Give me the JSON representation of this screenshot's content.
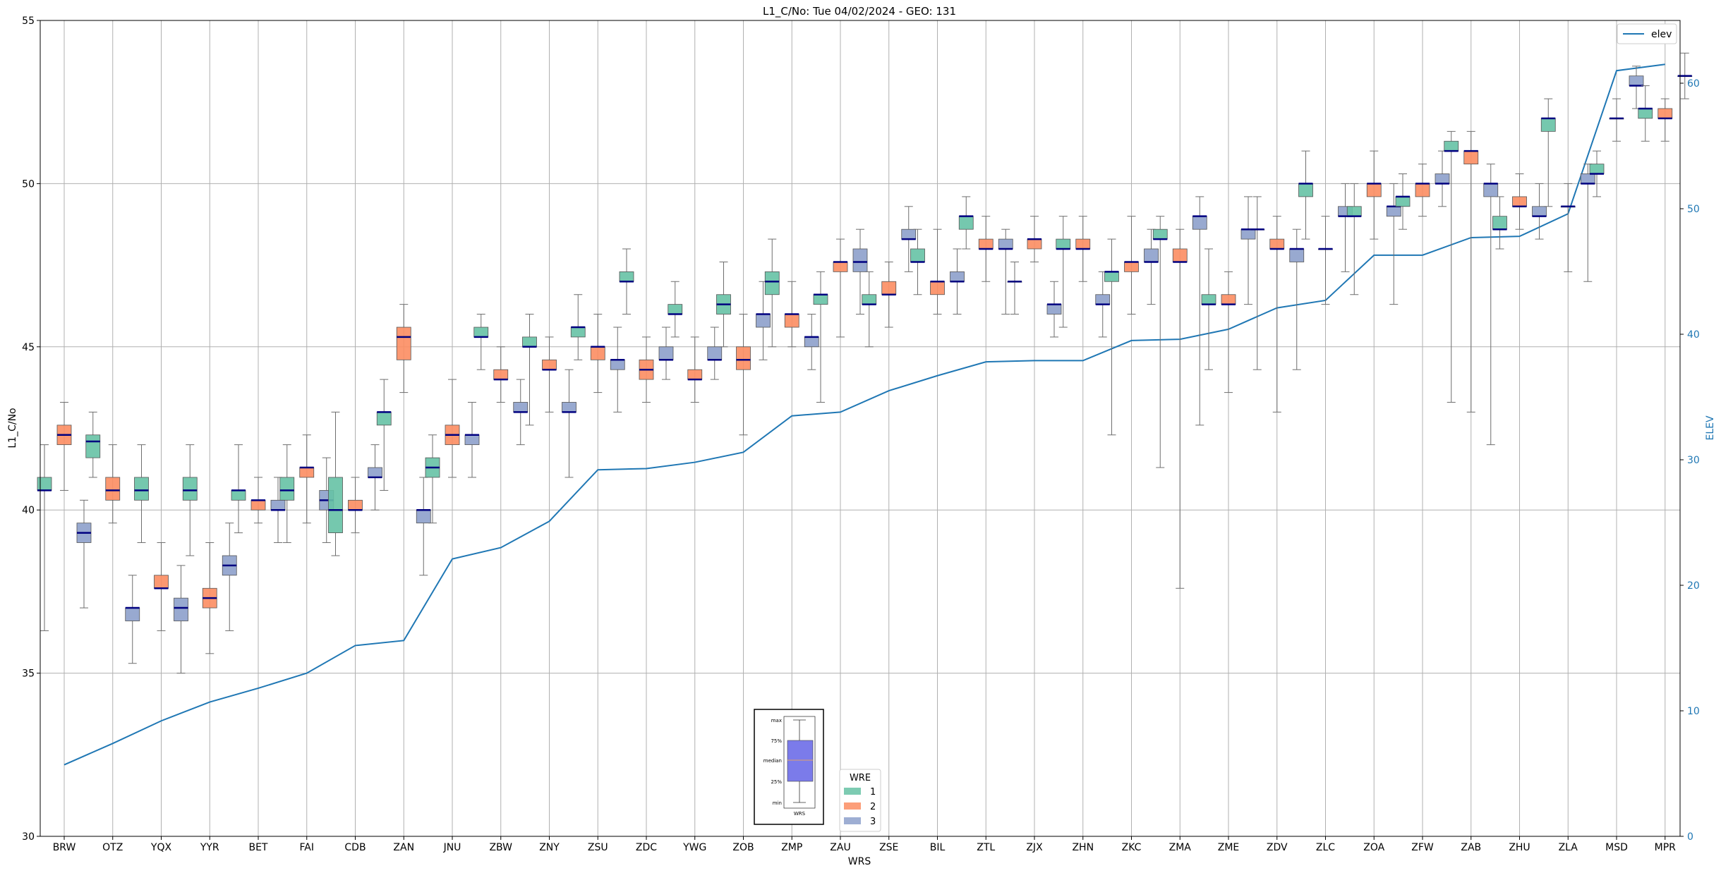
{
  "chart_data": {
    "type": "box",
    "title": "L1_C/No: Tue 04/02/2024 - GEO: 131",
    "xlabel": "WRS",
    "ylabel": "L1_C/No",
    "y2label": "ELEV",
    "ylim": [
      30,
      55
    ],
    "y2lim": [
      0,
      65
    ],
    "yticks": [
      "30",
      "35",
      "40",
      "45",
      "50",
      "55"
    ],
    "y2ticks": [
      "0",
      "10",
      "20",
      "30",
      "40",
      "50",
      "60"
    ],
    "grid": true,
    "categories": [
      "BRW",
      "OTZ",
      "YQX",
      "YYR",
      "BET",
      "FAI",
      "CDB",
      "ZAN",
      "JNU",
      "ZBW",
      "ZNY",
      "ZSU",
      "ZDC",
      "YWG",
      "ZOB",
      "ZMP",
      "ZAU",
      "ZSE",
      "BIL",
      "ZTL",
      "ZJX",
      "ZHN",
      "ZKC",
      "ZMA",
      "ZME",
      "ZDV",
      "ZLC",
      "ZOA",
      "ZFW",
      "ZAB",
      "ZHU",
      "ZLA",
      "MSD",
      "MPR"
    ],
    "wre_colors": {
      "1": "#66c2a5",
      "2": "#fc8d62",
      "3": "#8da0cb"
    },
    "legend": {
      "title": "WRE",
      "entries": [
        "1",
        "2",
        "3"
      ],
      "placement": "bottom-center"
    },
    "elev_legend": {
      "label": "elev",
      "placement": "top-right",
      "color": "#1f77b4"
    },
    "key_box": {
      "labels": [
        "max",
        "75%",
        "median",
        "25%",
        "min"
      ],
      "xlabel": "WRS"
    },
    "boxes": [
      {
        "cat": "BRW",
        "wre": "1",
        "min": 36.3,
        "q1": 40.6,
        "med": 40.6,
        "q3": 41.0,
        "max": 42.0
      },
      {
        "cat": "BRW",
        "wre": "2",
        "min": 40.6,
        "q1": 42.0,
        "med": 42.3,
        "q3": 42.6,
        "max": 43.3
      },
      {
        "cat": "BRW",
        "wre": "3",
        "min": 37.0,
        "q1": 39.0,
        "med": 39.3,
        "q3": 39.6,
        "max": 40.3
      },
      {
        "cat": "OTZ",
        "wre": "1",
        "min": 41.0,
        "q1": 41.6,
        "med": 42.1,
        "q3": 42.3,
        "max": 43.0
      },
      {
        "cat": "OTZ",
        "wre": "2",
        "min": 39.6,
        "q1": 40.3,
        "med": 40.6,
        "q3": 41.0,
        "max": 42.0
      },
      {
        "cat": "OTZ",
        "wre": "3",
        "min": 35.3,
        "q1": 36.6,
        "med": 37.0,
        "q3": 37.0,
        "max": 38.0
      },
      {
        "cat": "YQX",
        "wre": "1",
        "min": 39.0,
        "q1": 40.3,
        "med": 40.6,
        "q3": 41.0,
        "max": 42.0
      },
      {
        "cat": "YQX",
        "wre": "2",
        "min": 36.3,
        "q1": 37.6,
        "med": 37.6,
        "q3": 38.0,
        "max": 39.0
      },
      {
        "cat": "YQX",
        "wre": "3",
        "min": 35.0,
        "q1": 36.6,
        "med": 37.0,
        "q3": 37.3,
        "max": 38.3
      },
      {
        "cat": "YYR",
        "wre": "1",
        "min": 38.6,
        "q1": 40.3,
        "med": 40.6,
        "q3": 41.0,
        "max": 42.0
      },
      {
        "cat": "YYR",
        "wre": "2",
        "min": 35.6,
        "q1": 37.0,
        "med": 37.3,
        "q3": 37.6,
        "max": 39.0
      },
      {
        "cat": "YYR",
        "wre": "3",
        "min": 36.3,
        "q1": 38.0,
        "med": 38.3,
        "q3": 38.6,
        "max": 39.6
      },
      {
        "cat": "BET",
        "wre": "1",
        "min": 39.3,
        "q1": 40.3,
        "med": 40.6,
        "q3": 40.6,
        "max": 42.0
      },
      {
        "cat": "BET",
        "wre": "2",
        "min": 39.6,
        "q1": 40.0,
        "med": 40.3,
        "q3": 40.3,
        "max": 41.0
      },
      {
        "cat": "BET",
        "wre": "3",
        "min": 39.0,
        "q1": 40.0,
        "med": 40.0,
        "q3": 40.3,
        "max": 41.0
      },
      {
        "cat": "FAI",
        "wre": "1",
        "min": 39.0,
        "q1": 40.3,
        "med": 40.6,
        "q3": 41.0,
        "max": 42.0
      },
      {
        "cat": "FAI",
        "wre": "2",
        "min": 39.6,
        "q1": 41.0,
        "med": 41.3,
        "q3": 41.3,
        "max": 42.3
      },
      {
        "cat": "FAI",
        "wre": "3",
        "min": 39.0,
        "q1": 40.0,
        "med": 40.3,
        "q3": 40.6,
        "max": 41.6
      },
      {
        "cat": "CDB",
        "wre": "1",
        "min": 38.6,
        "q1": 39.3,
        "med": 40.0,
        "q3": 41.0,
        "max": 43.0
      },
      {
        "cat": "CDB",
        "wre": "2",
        "min": 39.3,
        "q1": 40.0,
        "med": 40.0,
        "q3": 40.3,
        "max": 41.0
      },
      {
        "cat": "CDB",
        "wre": "3",
        "min": 40.0,
        "q1": 41.0,
        "med": 41.0,
        "q3": 41.3,
        "max": 42.0
      },
      {
        "cat": "ZAN",
        "wre": "1",
        "min": 40.6,
        "q1": 42.6,
        "med": 43.0,
        "q3": 43.0,
        "max": 44.0
      },
      {
        "cat": "ZAN",
        "wre": "2",
        "min": 43.6,
        "q1": 44.6,
        "med": 45.3,
        "q3": 45.6,
        "max": 46.3
      },
      {
        "cat": "ZAN",
        "wre": "3",
        "min": 38.0,
        "q1": 39.6,
        "med": 40.0,
        "q3": 40.0,
        "max": 41.0
      },
      {
        "cat": "JNU",
        "wre": "1",
        "min": 39.6,
        "q1": 41.0,
        "med": 41.3,
        "q3": 41.6,
        "max": 42.3
      },
      {
        "cat": "JNU",
        "wre": "2",
        "min": 41.0,
        "q1": 42.0,
        "med": 42.3,
        "q3": 42.6,
        "max": 44.0
      },
      {
        "cat": "JNU",
        "wre": "3",
        "min": 41.0,
        "q1": 42.0,
        "med": 42.3,
        "q3": 42.3,
        "max": 43.3
      },
      {
        "cat": "ZBW",
        "wre": "1",
        "min": 44.3,
        "q1": 45.3,
        "med": 45.3,
        "q3": 45.6,
        "max": 46.0
      },
      {
        "cat": "ZBW",
        "wre": "2",
        "min": 43.3,
        "q1": 44.0,
        "med": 44.0,
        "q3": 44.3,
        "max": 45.0
      },
      {
        "cat": "ZBW",
        "wre": "3",
        "min": 42.0,
        "q1": 43.0,
        "med": 43.0,
        "q3": 43.3,
        "max": 44.0
      },
      {
        "cat": "ZNY",
        "wre": "1",
        "min": 42.6,
        "q1": 45.0,
        "med": 45.0,
        "q3": 45.3,
        "max": 46.0
      },
      {
        "cat": "ZNY",
        "wre": "2",
        "min": 43.0,
        "q1": 44.3,
        "med": 44.3,
        "q3": 44.6,
        "max": 45.3
      },
      {
        "cat": "ZNY",
        "wre": "3",
        "min": 41.0,
        "q1": 43.0,
        "med": 43.0,
        "q3": 43.3,
        "max": 44.3
      },
      {
        "cat": "ZSU",
        "wre": "1",
        "min": 44.6,
        "q1": 45.3,
        "med": 45.6,
        "q3": 45.6,
        "max": 46.6
      },
      {
        "cat": "ZSU",
        "wre": "2",
        "min": 43.6,
        "q1": 44.6,
        "med": 45.0,
        "q3": 45.0,
        "max": 46.0
      },
      {
        "cat": "ZSU",
        "wre": "3",
        "min": 43.0,
        "q1": 44.3,
        "med": 44.6,
        "q3": 44.6,
        "max": 45.6
      },
      {
        "cat": "ZDC",
        "wre": "1",
        "min": 46.0,
        "q1": 47.0,
        "med": 47.0,
        "q3": 47.3,
        "max": 48.0
      },
      {
        "cat": "ZDC",
        "wre": "2",
        "min": 43.3,
        "q1": 44.0,
        "med": 44.3,
        "q3": 44.6,
        "max": 45.3
      },
      {
        "cat": "ZDC",
        "wre": "3",
        "min": 44.0,
        "q1": 44.6,
        "med": 44.6,
        "q3": 45.0,
        "max": 45.6
      },
      {
        "cat": "YWG",
        "wre": "1",
        "min": 45.3,
        "q1": 46.0,
        "med": 46.0,
        "q3": 46.3,
        "max": 47.0
      },
      {
        "cat": "YWG",
        "wre": "2",
        "min": 43.3,
        "q1": 44.0,
        "med": 44.0,
        "q3": 44.3,
        "max": 45.3
      },
      {
        "cat": "YWG",
        "wre": "3",
        "min": 44.0,
        "q1": 44.6,
        "med": 44.6,
        "q3": 45.0,
        "max": 45.6
      },
      {
        "cat": "ZOB",
        "wre": "1",
        "min": 45.0,
        "q1": 46.0,
        "med": 46.3,
        "q3": 46.6,
        "max": 47.6
      },
      {
        "cat": "ZOB",
        "wre": "2",
        "min": 42.3,
        "q1": 44.3,
        "med": 44.6,
        "q3": 45.0,
        "max": 46.0
      },
      {
        "cat": "ZOB",
        "wre": "3",
        "min": 44.6,
        "q1": 45.6,
        "med": 46.0,
        "q3": 46.0,
        "max": 47.0
      },
      {
        "cat": "ZMP",
        "wre": "1",
        "min": 45.0,
        "q1": 46.6,
        "med": 47.0,
        "q3": 47.3,
        "max": 48.3
      },
      {
        "cat": "ZMP",
        "wre": "2",
        "min": 45.0,
        "q1": 45.6,
        "med": 46.0,
        "q3": 46.0,
        "max": 47.0
      },
      {
        "cat": "ZMP",
        "wre": "3",
        "min": 44.3,
        "q1": 45.0,
        "med": 45.3,
        "q3": 45.3,
        "max": 46.0
      },
      {
        "cat": "ZAU",
        "wre": "1",
        "min": 43.3,
        "q1": 46.3,
        "med": 46.6,
        "q3": 46.6,
        "max": 47.3
      },
      {
        "cat": "ZAU",
        "wre": "2",
        "min": 45.3,
        "q1": 47.3,
        "med": 47.6,
        "q3": 47.6,
        "max": 48.3
      },
      {
        "cat": "ZAU",
        "wre": "3",
        "min": 46.0,
        "q1": 47.3,
        "med": 47.6,
        "q3": 48.0,
        "max": 48.6
      },
      {
        "cat": "ZSE",
        "wre": "1",
        "min": 45.0,
        "q1": 46.3,
        "med": 46.3,
        "q3": 46.6,
        "max": 47.3
      },
      {
        "cat": "ZSE",
        "wre": "2",
        "min": 45.6,
        "q1": 46.6,
        "med": 46.6,
        "q3": 47.0,
        "max": 47.6
      },
      {
        "cat": "ZSE",
        "wre": "3",
        "min": 47.3,
        "q1": 48.3,
        "med": 48.3,
        "q3": 48.6,
        "max": 49.3
      },
      {
        "cat": "BIL",
        "wre": "1",
        "min": 46.6,
        "q1": 47.6,
        "med": 47.6,
        "q3": 48.0,
        "max": 48.6
      },
      {
        "cat": "BIL",
        "wre": "2",
        "min": 46.0,
        "q1": 46.6,
        "med": 47.0,
        "q3": 47.0,
        "max": 48.6
      },
      {
        "cat": "BIL",
        "wre": "3",
        "min": 46.0,
        "q1": 47.0,
        "med": 47.0,
        "q3": 47.3,
        "max": 48.0
      },
      {
        "cat": "ZTL",
        "wre": "1",
        "min": 48.0,
        "q1": 48.6,
        "med": 49.0,
        "q3": 49.0,
        "max": 49.6
      },
      {
        "cat": "ZTL",
        "wre": "2",
        "min": 47.0,
        "q1": 48.0,
        "med": 48.0,
        "q3": 48.3,
        "max": 49.0
      },
      {
        "cat": "ZTL",
        "wre": "3",
        "min": 46.0,
        "q1": 48.0,
        "med": 48.0,
        "q3": 48.3,
        "max": 48.6
      },
      {
        "cat": "ZJX",
        "wre": "1",
        "min": 46.0,
        "q1": 47.0,
        "med": 47.0,
        "q3": 47.0,
        "max": 47.6
      },
      {
        "cat": "ZJX",
        "wre": "2",
        "min": 47.6,
        "q1": 48.0,
        "med": 48.3,
        "q3": 48.3,
        "max": 49.0
      },
      {
        "cat": "ZJX",
        "wre": "3",
        "min": 45.3,
        "q1": 46.0,
        "med": 46.3,
        "q3": 46.3,
        "max": 47.0
      },
      {
        "cat": "ZHN",
        "wre": "1",
        "min": 45.6,
        "q1": 48.0,
        "med": 48.0,
        "q3": 48.3,
        "max": 49.0
      },
      {
        "cat": "ZHN",
        "wre": "2",
        "min": 47.0,
        "q1": 48.0,
        "med": 48.0,
        "q3": 48.3,
        "max": 49.0
      },
      {
        "cat": "ZHN",
        "wre": "3",
        "min": 45.3,
        "q1": 46.3,
        "med": 46.3,
        "q3": 46.6,
        "max": 47.3
      },
      {
        "cat": "ZKC",
        "wre": "1",
        "min": 42.3,
        "q1": 47.0,
        "med": 47.3,
        "q3": 47.3,
        "max": 48.3
      },
      {
        "cat": "ZKC",
        "wre": "2",
        "min": 46.0,
        "q1": 47.3,
        "med": 47.6,
        "q3": 47.6,
        "max": 49.0
      },
      {
        "cat": "ZKC",
        "wre": "3",
        "min": 46.3,
        "q1": 47.6,
        "med": 47.6,
        "q3": 48.0,
        "max": 48.6
      },
      {
        "cat": "ZMA",
        "wre": "1",
        "min": 41.3,
        "q1": 48.3,
        "med": 48.3,
        "q3": 48.6,
        "max": 49.0
      },
      {
        "cat": "ZMA",
        "wre": "2",
        "min": 37.6,
        "q1": 47.6,
        "med": 47.6,
        "q3": 48.0,
        "max": 48.6
      },
      {
        "cat": "ZMA",
        "wre": "3",
        "min": 42.6,
        "q1": 48.6,
        "med": 49.0,
        "q3": 49.0,
        "max": 49.6
      },
      {
        "cat": "ZME",
        "wre": "1",
        "min": 44.3,
        "q1": 46.3,
        "med": 46.3,
        "q3": 46.6,
        "max": 48.0
      },
      {
        "cat": "ZME",
        "wre": "2",
        "min": 43.6,
        "q1": 46.3,
        "med": 46.3,
        "q3": 46.6,
        "max": 47.3
      },
      {
        "cat": "ZME",
        "wre": "3",
        "min": 46.3,
        "q1": 48.3,
        "med": 48.6,
        "q3": 48.6,
        "max": 49.6
      },
      {
        "cat": "ZDV",
        "wre": "1",
        "min": 44.3,
        "q1": 48.6,
        "med": 48.6,
        "q3": 48.6,
        "max": 49.6
      },
      {
        "cat": "ZDV",
        "wre": "2",
        "min": 43.0,
        "q1": 48.0,
        "med": 48.0,
        "q3": 48.3,
        "max": 49.0
      },
      {
        "cat": "ZDV",
        "wre": "3",
        "min": 44.3,
        "q1": 47.6,
        "med": 48.0,
        "q3": 48.0,
        "max": 48.6
      },
      {
        "cat": "ZLC",
        "wre": "1",
        "min": 48.3,
        "q1": 49.6,
        "med": 50.0,
        "q3": 50.0,
        "max": 51.0
      },
      {
        "cat": "ZLC",
        "wre": "2",
        "min": 46.3,
        "q1": 48.0,
        "med": 48.0,
        "q3": 48.0,
        "max": 49.0
      },
      {
        "cat": "ZLC",
        "wre": "3",
        "min": 47.3,
        "q1": 49.0,
        "med": 49.0,
        "q3": 49.3,
        "max": 50.0
      },
      {
        "cat": "ZOA",
        "wre": "1",
        "min": 46.6,
        "q1": 49.0,
        "med": 49.0,
        "q3": 49.3,
        "max": 50.0
      },
      {
        "cat": "ZOA",
        "wre": "2",
        "min": 48.3,
        "q1": 49.6,
        "med": 50.0,
        "q3": 50.0,
        "max": 51.0
      },
      {
        "cat": "ZOA",
        "wre": "3",
        "min": 46.3,
        "q1": 49.0,
        "med": 49.3,
        "q3": 49.3,
        "max": 50.0
      },
      {
        "cat": "ZFW",
        "wre": "1",
        "min": 48.6,
        "q1": 49.3,
        "med": 49.6,
        "q3": 49.6,
        "max": 50.3
      },
      {
        "cat": "ZFW",
        "wre": "2",
        "min": 49.0,
        "q1": 49.6,
        "med": 50.0,
        "q3": 50.0,
        "max": 50.6
      },
      {
        "cat": "ZFW",
        "wre": "3",
        "min": 49.3,
        "q1": 50.0,
        "med": 50.0,
        "q3": 50.3,
        "max": 51.0
      },
      {
        "cat": "ZAB",
        "wre": "1",
        "min": 43.3,
        "q1": 51.0,
        "med": 51.0,
        "q3": 51.3,
        "max": 51.6
      },
      {
        "cat": "ZAB",
        "wre": "2",
        "min": 43.0,
        "q1": 50.6,
        "med": 51.0,
        "q3": 51.0,
        "max": 51.6
      },
      {
        "cat": "ZAB",
        "wre": "3",
        "min": 42.0,
        "q1": 49.6,
        "med": 50.0,
        "q3": 50.0,
        "max": 50.6
      },
      {
        "cat": "ZHU",
        "wre": "1",
        "min": 48.0,
        "q1": 48.6,
        "med": 48.6,
        "q3": 49.0,
        "max": 49.6
      },
      {
        "cat": "ZHU",
        "wre": "2",
        "min": 48.6,
        "q1": 49.3,
        "med": 49.3,
        "q3": 49.6,
        "max": 50.3
      },
      {
        "cat": "ZHU",
        "wre": "3",
        "min": 48.3,
        "q1": 49.0,
        "med": 49.0,
        "q3": 49.3,
        "max": 50.0
      },
      {
        "cat": "ZLA",
        "wre": "1",
        "min": 49.3,
        "q1": 51.6,
        "med": 52.0,
        "q3": 52.0,
        "max": 52.6
      },
      {
        "cat": "ZLA",
        "wre": "2",
        "min": 47.3,
        "q1": 49.3,
        "med": 49.3,
        "q3": 49.3,
        "max": 50.0
      },
      {
        "cat": "ZLA",
        "wre": "3",
        "min": 47.0,
        "q1": 50.0,
        "med": 50.0,
        "q3": 50.3,
        "max": 50.6
      },
      {
        "cat": "MSD",
        "wre": "1",
        "min": 49.6,
        "q1": 50.3,
        "med": 50.3,
        "q3": 50.6,
        "max": 51.0
      },
      {
        "cat": "MSD",
        "wre": "2",
        "min": 51.3,
        "q1": 52.0,
        "med": 52.0,
        "q3": 52.0,
        "max": 52.6
      },
      {
        "cat": "MSD",
        "wre": "3",
        "min": 52.3,
        "q1": 53.0,
        "med": 53.0,
        "q3": 53.3,
        "max": 53.6
      },
      {
        "cat": "MPR",
        "wre": "1",
        "min": 51.3,
        "q1": 52.0,
        "med": 52.3,
        "q3": 52.3,
        "max": 53.0
      },
      {
        "cat": "MPR",
        "wre": "2",
        "min": 51.3,
        "q1": 52.0,
        "med": 52.0,
        "q3": 52.3,
        "max": 52.6
      },
      {
        "cat": "MPR",
        "wre": "3",
        "min": 52.6,
        "q1": 53.3,
        "med": 53.3,
        "q3": 53.3,
        "max": 54.0
      }
    ],
    "elev": {
      "name": "elev",
      "values": [
        5.7,
        7.4,
        9.2,
        10.7,
        11.8,
        13.0,
        15.2,
        15.6,
        22.1,
        23.0,
        25.1,
        29.2,
        29.3,
        29.8,
        30.6,
        33.5,
        33.8,
        35.5,
        36.7,
        37.8,
        37.9,
        37.9,
        39.5,
        39.6,
        40.4,
        42.1,
        42.7,
        46.3,
        46.3,
        47.7,
        47.8,
        49.6,
        61.0,
        61.5
      ]
    }
  }
}
